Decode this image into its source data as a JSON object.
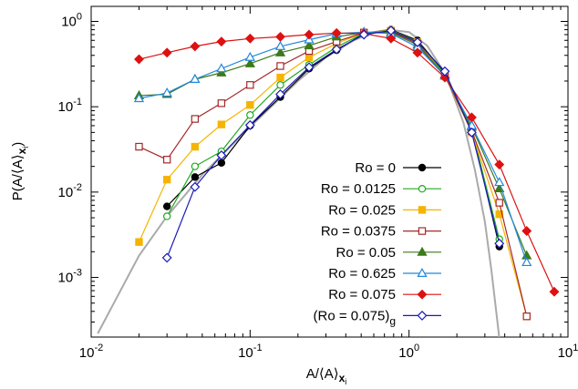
{
  "chart_data": {
    "type": "line",
    "title": "",
    "xlabel": "A/⟨A⟩",
    "xlabel_sub": "x",
    "xlabel_subsub": "i",
    "ylabel": "P(A/⟨A⟩",
    "ylabel_sub": "x",
    "ylabel_subsub": "i",
    "ylabel_close": ")",
    "xscale": "log",
    "yscale": "log",
    "xlim": [
      0.01,
      10
    ],
    "ylim": [
      0.0002,
      1.5
    ],
    "x_ticks": [
      0.01,
      0.1,
      1,
      10
    ],
    "x_tick_labels": [
      {
        "base": "10",
        "exp": "-2"
      },
      {
        "base": "10",
        "exp": "-1"
      },
      {
        "base": "10",
        "exp": "0"
      },
      {
        "base": "10",
        "exp": "1"
      }
    ],
    "y_ticks": [
      0.001,
      0.01,
      0.1,
      1
    ],
    "y_tick_labels": [
      {
        "base": "10",
        "exp": "-3"
      },
      {
        "base": "10",
        "exp": "-2"
      },
      {
        "base": "10",
        "exp": "-1"
      },
      {
        "base": "10",
        "exp": "0"
      }
    ],
    "grid": false,
    "legend_position": "bottom-right",
    "reference_curve": {
      "color": "#aaaaaa",
      "x": [
        0.011,
        0.02,
        0.03,
        0.05,
        0.1,
        0.2,
        0.3,
        0.45,
        0.6,
        0.75,
        1.0,
        1.3,
        1.7,
        2.2,
        2.6,
        3.0,
        3.3,
        3.6,
        3.9
      ],
      "y": [
        0.00022,
        0.0018,
        0.0052,
        0.016,
        0.058,
        0.2,
        0.38,
        0.6,
        0.75,
        0.8,
        0.75,
        0.52,
        0.24,
        0.065,
        0.018,
        0.0045,
        0.0012,
        0.0003,
        8e-05
      ]
    },
    "series": [
      {
        "name": "Ro = 0",
        "color": "#000000",
        "marker": "circle",
        "filled": true,
        "x": [
          0.03,
          0.045,
          0.066,
          0.1,
          0.155,
          0.235,
          0.35,
          0.52,
          0.77,
          1.13,
          1.68,
          2.48,
          3.7
        ],
        "y": [
          0.0068,
          0.015,
          0.022,
          0.06,
          0.13,
          0.28,
          0.46,
          0.72,
          0.8,
          0.6,
          0.25,
          0.055,
          0.0023
        ]
      },
      {
        "name": "Ro = 0.0125",
        "color": "#22aa22",
        "marker": "circle",
        "filled": false,
        "x": [
          0.03,
          0.045,
          0.066,
          0.1,
          0.155,
          0.235,
          0.35,
          0.52,
          0.77,
          1.13,
          1.68,
          2.48,
          3.7
        ],
        "y": [
          0.0052,
          0.02,
          0.03,
          0.08,
          0.18,
          0.31,
          0.5,
          0.73,
          0.79,
          0.58,
          0.24,
          0.055,
          0.0028
        ]
      },
      {
        "name": "Ro = 0.025",
        "color": "#f5b400",
        "marker": "square",
        "filled": true,
        "x": [
          0.02,
          0.03,
          0.045,
          0.066,
          0.1,
          0.155,
          0.235,
          0.35,
          0.52,
          0.77,
          1.13,
          1.68,
          2.48,
          3.7,
          5.5
        ],
        "y": [
          0.0026,
          0.014,
          0.034,
          0.062,
          0.105,
          0.22,
          0.38,
          0.55,
          0.74,
          0.78,
          0.57,
          0.23,
          0.05,
          0.0055,
          0.00035
        ]
      },
      {
        "name": "Ro = 0.0375",
        "color": "#a52a2a",
        "marker": "square",
        "filled": false,
        "x": [
          0.02,
          0.03,
          0.045,
          0.066,
          0.1,
          0.155,
          0.235,
          0.35,
          0.52,
          0.77,
          1.13,
          1.68,
          2.48,
          3.7,
          5.5
        ],
        "y": [
          0.034,
          0.024,
          0.072,
          0.11,
          0.18,
          0.3,
          0.45,
          0.58,
          0.74,
          0.76,
          0.55,
          0.23,
          0.052,
          0.0075,
          0.00035
        ]
      },
      {
        "name": "Ro = 0.05",
        "color": "#3d7a1a",
        "marker": "triangle",
        "filled": true,
        "x": [
          0.02,
          0.03,
          0.045,
          0.066,
          0.1,
          0.155,
          0.235,
          0.35,
          0.52,
          0.77,
          1.13,
          1.68,
          2.48,
          3.7,
          5.5
        ],
        "y": [
          0.135,
          0.14,
          0.21,
          0.25,
          0.32,
          0.43,
          0.52,
          0.66,
          0.74,
          0.74,
          0.53,
          0.23,
          0.058,
          0.011,
          0.0018
        ]
      },
      {
        "name": "Ro = 0.625",
        "color": "#2288dd",
        "marker": "triangle",
        "filled": false,
        "x": [
          0.02,
          0.03,
          0.045,
          0.066,
          0.1,
          0.155,
          0.235,
          0.35,
          0.52,
          0.77,
          1.13,
          1.68,
          2.48,
          3.7,
          5.5
        ],
        "y": [
          0.125,
          0.145,
          0.21,
          0.28,
          0.38,
          0.51,
          0.61,
          0.72,
          0.75,
          0.72,
          0.5,
          0.23,
          0.06,
          0.013,
          0.0015
        ]
      },
      {
        "name": "Ro = 0.075",
        "color": "#dd1111",
        "marker": "diamond",
        "filled": true,
        "x": [
          0.02,
          0.03,
          0.045,
          0.066,
          0.1,
          0.155,
          0.235,
          0.35,
          0.52,
          0.77,
          1.13,
          1.68,
          2.48,
          3.7,
          5.5,
          8.2
        ],
        "y": [
          0.36,
          0.43,
          0.51,
          0.58,
          0.63,
          0.66,
          0.7,
          0.73,
          0.72,
          0.63,
          0.43,
          0.22,
          0.075,
          0.021,
          0.0035,
          0.00068
        ]
      },
      {
        "name": "(Ro = 0.075)",
        "name_sub": "g",
        "color": "#1a1ab8",
        "marker": "diamond",
        "filled": false,
        "x": [
          0.03,
          0.045,
          0.066,
          0.1,
          0.155,
          0.235,
          0.35,
          0.52,
          0.77,
          1.13,
          1.68,
          2.48,
          3.7
        ],
        "y": [
          0.0017,
          0.0115,
          0.027,
          0.061,
          0.14,
          0.29,
          0.47,
          0.7,
          0.78,
          0.57,
          0.26,
          0.05,
          0.0025
        ]
      }
    ]
  }
}
